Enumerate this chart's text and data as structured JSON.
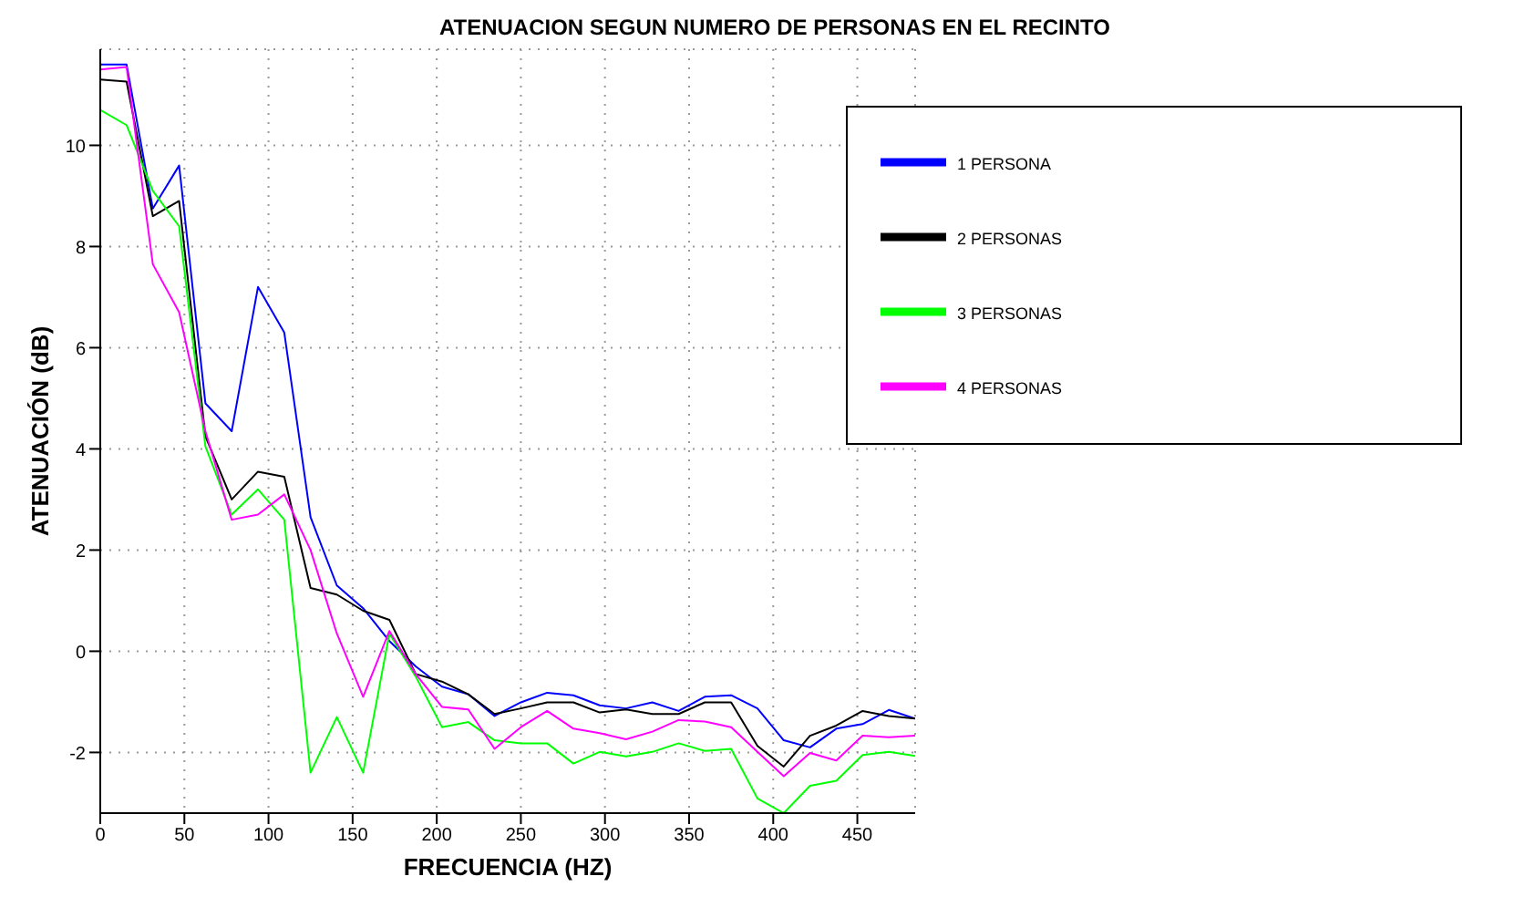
{
  "chart_data": {
    "type": "line",
    "title": "ATENUACION SEGUN NUMERO DE PERSONAS EN EL RECINTO",
    "xlabel": "FRECUENCIA (HZ)",
    "ylabel": "ATENUACIÓN (dB)",
    "x": [
      0,
      15.625,
      31.25,
      46.875,
      62.5,
      78.125,
      93.75,
      109.375,
      125,
      140.625,
      156.25,
      171.875,
      187.5,
      203.125,
      218.75,
      234.375,
      250,
      265.625,
      281.25,
      296.875,
      312.5,
      328.125,
      343.75,
      359.375,
      375,
      390.625,
      406.25,
      421.875,
      437.5,
      453.125,
      468.75,
      484.375
    ],
    "series": [
      {
        "name": "1 PERSONA",
        "color": "#0000ff",
        "values": [
          11.6,
          11.6,
          8.75,
          9.6,
          4.9,
          4.35,
          7.2,
          6.3,
          2.65,
          1.3,
          0.85,
          0.2,
          -0.3,
          -0.7,
          -0.85,
          -1.28,
          -1.01,
          -0.82,
          -0.87,
          -1.07,
          -1.13,
          -1.01,
          -1.18,
          -0.9,
          -0.87,
          -1.13,
          -1.76,
          -1.9,
          -1.53,
          -1.44,
          -1.16,
          -1.33
        ]
      },
      {
        "name": "2 PERSONAS",
        "color": "#000000",
        "values": [
          11.3,
          11.26,
          8.6,
          8.9,
          4.25,
          3.0,
          3.55,
          3.45,
          1.25,
          1.12,
          0.8,
          0.62,
          -0.45,
          -0.6,
          -0.85,
          -1.24,
          -1.13,
          -1.01,
          -1.01,
          -1.21,
          -1.15,
          -1.24,
          -1.24,
          -1.01,
          -1.01,
          -1.87,
          -2.28,
          -1.67,
          -1.47,
          -1.18,
          -1.28,
          -1.33
        ]
      },
      {
        "name": "3 PERSONAS",
        "color": "#00ff00",
        "values": [
          10.7,
          10.4,
          9.1,
          8.4,
          4.05,
          2.7,
          3.2,
          2.6,
          -2.4,
          -1.3,
          -2.4,
          0.35,
          -0.5,
          -1.5,
          -1.4,
          -1.76,
          -1.82,
          -1.82,
          -2.22,
          -1.99,
          -2.08,
          -1.99,
          -1.82,
          -1.97,
          -1.93,
          -2.91,
          -3.2,
          -2.66,
          -2.56,
          -2.05,
          -1.99,
          -2.07
        ]
      },
      {
        "name": "4 PERSONAS",
        "color": "#ff00ff",
        "values": [
          11.5,
          11.55,
          7.65,
          6.7,
          4.35,
          2.6,
          2.7,
          3.1,
          2.0,
          0.35,
          -0.9,
          0.4,
          -0.45,
          -1.1,
          -1.15,
          -1.93,
          -1.5,
          -1.18,
          -1.53,
          -1.62,
          -1.74,
          -1.59,
          -1.36,
          -1.39,
          -1.5,
          -1.99,
          -2.47,
          -2.01,
          -2.16,
          -1.67,
          -1.7,
          -1.67
        ]
      }
    ],
    "xlim": [
      0,
      484.375
    ],
    "xticks": [
      0,
      50,
      100,
      150,
      200,
      250,
      300,
      350,
      400,
      450
    ],
    "ylim": [
      -3.2,
      11.9
    ],
    "yticks": [
      -2,
      0,
      2,
      4,
      6,
      8,
      10
    ],
    "grid": true,
    "legend": "top right",
    "marker": "none",
    "line_style": "solid"
  }
}
